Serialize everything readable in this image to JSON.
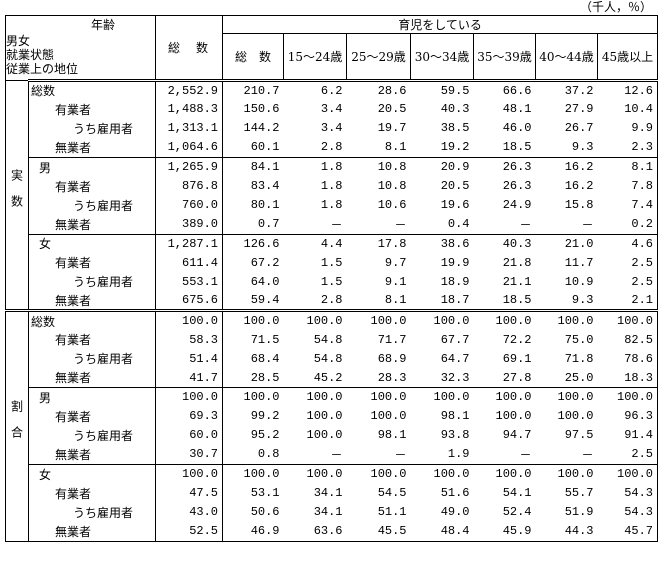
{
  "unit": "（千人，％）",
  "header": {
    "age": "年齢",
    "row_labels": [
      "男女",
      "就業状態",
      "従業上の地位"
    ],
    "total": "総　数",
    "childcare": "育児をしている",
    "columns": [
      "総　数",
      "15～24歳",
      "25～29歳",
      "30～34歳",
      "35～39歳",
      "40～44歳",
      "45歳以上"
    ]
  },
  "sections": [
    {
      "label": "実数",
      "groups": [
        {
          "rows": [
            {
              "label": "総数",
              "total": "2,552.9",
              "values": [
                "210.7",
                "6.2",
                "28.6",
                "59.5",
                "66.6",
                "37.2",
                "12.6"
              ]
            },
            {
              "label": "有業者",
              "total": "1,488.3",
              "values": [
                "150.6",
                "3.4",
                "20.5",
                "40.3",
                "48.1",
                "27.9",
                "10.4"
              ]
            },
            {
              "label": "うち雇用者",
              "total": "1,313.1",
              "values": [
                "144.2",
                "3.4",
                "19.7",
                "38.5",
                "46.0",
                "26.7",
                "9.9"
              ]
            },
            {
              "label": "無業者",
              "total": "1,064.6",
              "values": [
                "60.1",
                "2.8",
                "8.1",
                "19.2",
                "18.5",
                "9.3",
                "2.3"
              ]
            }
          ]
        },
        {
          "rows": [
            {
              "label": "男",
              "total": "1,265.9",
              "values": [
                "84.1",
                "1.8",
                "10.8",
                "20.9",
                "26.3",
                "16.2",
                "8.1"
              ]
            },
            {
              "label": "有業者",
              "total": "876.8",
              "values": [
                "83.4",
                "1.8",
                "10.8",
                "20.5",
                "26.3",
                "16.2",
                "7.8"
              ]
            },
            {
              "label": "うち雇用者",
              "total": "760.0",
              "values": [
                "80.1",
                "1.8",
                "10.6",
                "19.6",
                "24.9",
                "15.8",
                "7.4"
              ]
            },
            {
              "label": "無業者",
              "total": "389.0",
              "values": [
                "0.7",
                "－",
                "－",
                "0.4",
                "－",
                "－",
                "0.2"
              ]
            }
          ]
        },
        {
          "rows": [
            {
              "label": "女",
              "total": "1,287.1",
              "values": [
                "126.6",
                "4.4",
                "17.8",
                "38.6",
                "40.3",
                "21.0",
                "4.6"
              ]
            },
            {
              "label": "有業者",
              "total": "611.4",
              "values": [
                "67.2",
                "1.5",
                "9.7",
                "19.9",
                "21.8",
                "11.7",
                "2.5"
              ]
            },
            {
              "label": "うち雇用者",
              "total": "553.1",
              "values": [
                "64.0",
                "1.5",
                "9.1",
                "18.9",
                "21.1",
                "10.9",
                "2.5"
              ]
            },
            {
              "label": "無業者",
              "total": "675.6",
              "values": [
                "59.4",
                "2.8",
                "8.1",
                "18.7",
                "18.5",
                "9.3",
                "2.1"
              ]
            }
          ]
        }
      ]
    },
    {
      "label": "割合",
      "groups": [
        {
          "rows": [
            {
              "label": "総数",
              "total": "100.0",
              "values": [
                "100.0",
                "100.0",
                "100.0",
                "100.0",
                "100.0",
                "100.0",
                "100.0"
              ]
            },
            {
              "label": "有業者",
              "total": "58.3",
              "values": [
                "71.5",
                "54.8",
                "71.7",
                "67.7",
                "72.2",
                "75.0",
                "82.5"
              ]
            },
            {
              "label": "うち雇用者",
              "total": "51.4",
              "values": [
                "68.4",
                "54.8",
                "68.9",
                "64.7",
                "69.1",
                "71.8",
                "78.6"
              ]
            },
            {
              "label": "無業者",
              "total": "41.7",
              "values": [
                "28.5",
                "45.2",
                "28.3",
                "32.3",
                "27.8",
                "25.0",
                "18.3"
              ]
            }
          ]
        },
        {
          "rows": [
            {
              "label": "男",
              "total": "100.0",
              "values": [
                "100.0",
                "100.0",
                "100.0",
                "100.0",
                "100.0",
                "100.0",
                "100.0"
              ]
            },
            {
              "label": "有業者",
              "total": "69.3",
              "values": [
                "99.2",
                "100.0",
                "100.0",
                "98.1",
                "100.0",
                "100.0",
                "96.3"
              ]
            },
            {
              "label": "うち雇用者",
              "total": "60.0",
              "values": [
                "95.2",
                "100.0",
                "98.1",
                "93.8",
                "94.7",
                "97.5",
                "91.4"
              ]
            },
            {
              "label": "無業者",
              "total": "30.7",
              "values": [
                "0.8",
                "－",
                "－",
                "1.9",
                "－",
                "－",
                "2.5"
              ]
            }
          ]
        },
        {
          "rows": [
            {
              "label": "女",
              "total": "100.0",
              "values": [
                "100.0",
                "100.0",
                "100.0",
                "100.0",
                "100.0",
                "100.0",
                "100.0"
              ]
            },
            {
              "label": "有業者",
              "total": "47.5",
              "values": [
                "53.1",
                "34.1",
                "54.5",
                "51.6",
                "54.1",
                "55.7",
                "54.3"
              ]
            },
            {
              "label": "うち雇用者",
              "total": "43.0",
              "values": [
                "50.6",
                "34.1",
                "51.1",
                "49.0",
                "52.4",
                "51.9",
                "54.3"
              ]
            },
            {
              "label": "無業者",
              "total": "52.5",
              "values": [
                "46.9",
                "63.6",
                "45.5",
                "48.4",
                "45.9",
                "44.3",
                "45.7"
              ]
            }
          ]
        }
      ]
    }
  ]
}
